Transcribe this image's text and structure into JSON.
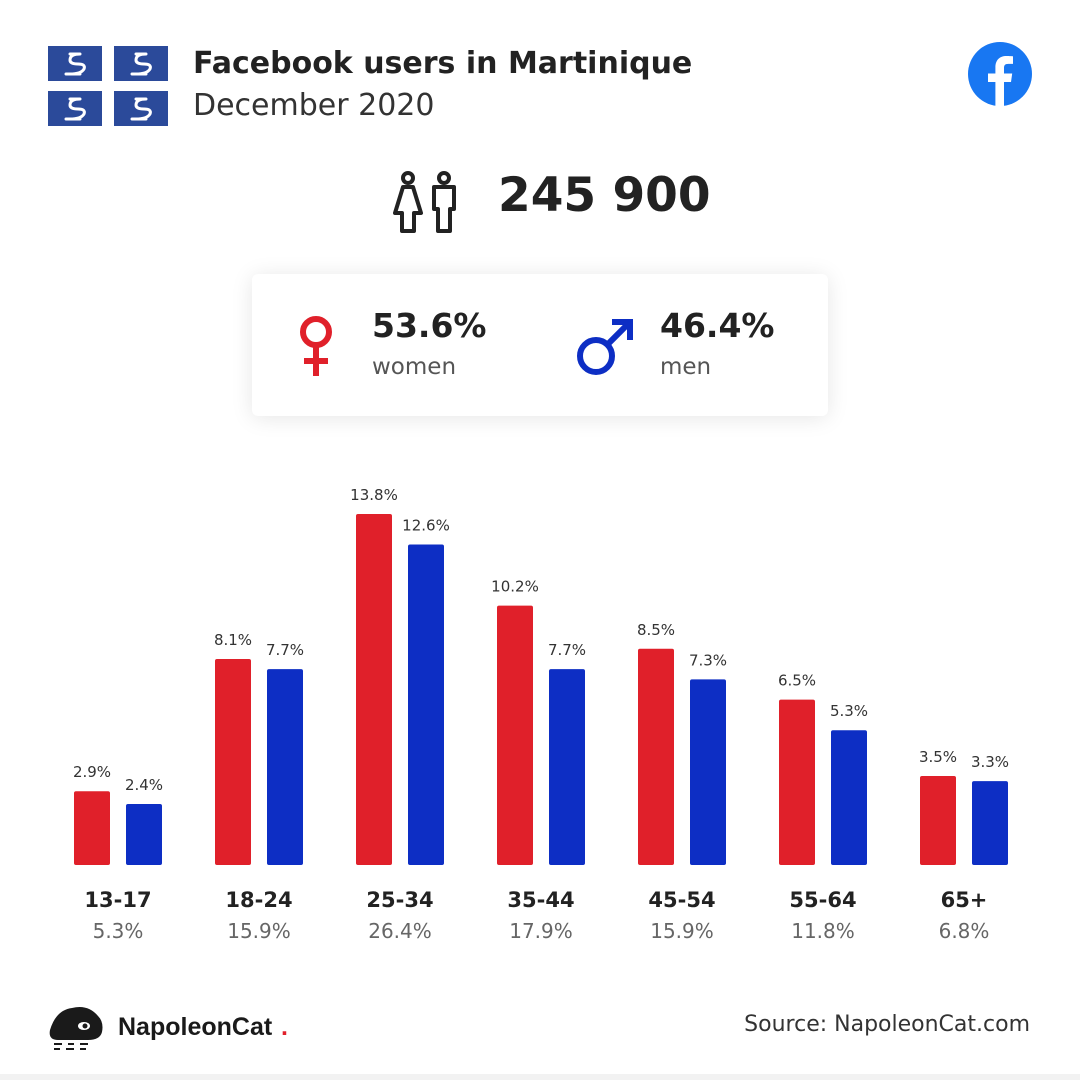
{
  "header": {
    "title": "Facebook users in Martinique",
    "subtitle": "December 2020"
  },
  "icons": {
    "flag": "martinique-flag-icon",
    "brand": "facebook-icon",
    "people": "people-icon",
    "female": "female-symbol-icon",
    "male": "male-symbol-icon",
    "logo": "napoleoncat-logo-icon"
  },
  "summary": {
    "total_users": "245 900",
    "women": {
      "percent": "53.6%",
      "label": "women"
    },
    "men": {
      "percent": "46.4%",
      "label": "men"
    }
  },
  "colors": {
    "women": "#e0202a",
    "men": "#0d2ec4",
    "facebook": "#1877f2",
    "flag": "#2b4a9a"
  },
  "chart_data": {
    "type": "bar",
    "categories": [
      "13-17",
      "18-24",
      "25-34",
      "35-44",
      "45-54",
      "55-64",
      "65+"
    ],
    "category_totals": [
      "5.3%",
      "15.9%",
      "26.4%",
      "17.9%",
      "15.9%",
      "11.8%",
      "6.8%"
    ],
    "series": [
      {
        "values": [
          2.9,
          8.1,
          13.8,
          10.2,
          8.5,
          6.5,
          3.5
        ],
        "labels": [
          "2.9%",
          "8.1%",
          "13.8%",
          "10.2%",
          "8.5%",
          "6.5%",
          "3.5%"
        ],
        "color": "#e0202a"
      },
      {
        "values": [
          2.4,
          7.7,
          12.6,
          7.7,
          7.3,
          5.3,
          3.3
        ],
        "labels": [
          "2.4%",
          "7.7%",
          "12.6%",
          "7.7%",
          "7.3%",
          "5.3%",
          "3.3%"
        ],
        "color": "#0d2ec4"
      }
    ],
    "ylim": [
      0,
      13.8
    ],
    "grid": false,
    "title": "",
    "xlabel": "",
    "ylabel": ""
  },
  "footer": {
    "brand_name": "NapoleonCat",
    "brand_dot": ".",
    "source": "Source: NapoleonCat.com"
  }
}
